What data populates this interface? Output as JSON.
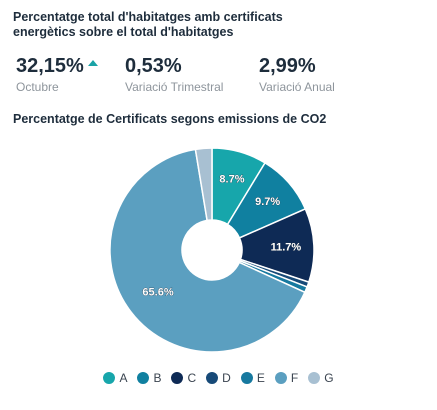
{
  "header": {
    "title_line1": "Percentatge total d'habitatges amb certificats",
    "title_line2": "energètics sobre el total d'habitatges"
  },
  "kpis": [
    {
      "value": "32,15%",
      "label": "Octubre",
      "trend": "up"
    },
    {
      "value": "0,53%",
      "label": "Variació Trimestral"
    },
    {
      "value": "2,99%",
      "label": "Variació Anual"
    }
  ],
  "chart_data": {
    "type": "pie",
    "variant": "donut",
    "title": "Percentatge de Certificats segons emissions de CO2",
    "categories": [
      "A",
      "B",
      "C",
      "D",
      "E",
      "F",
      "G"
    ],
    "values": [
      8.7,
      9.7,
      11.7,
      0.8,
      0.9,
      65.6,
      2.6
    ],
    "data_labels": [
      "8.7%",
      "9.7%",
      "11.7%",
      "",
      "",
      "65.6%",
      ""
    ],
    "colors": [
      "#17a6ab",
      "#1080a0",
      "#0e2a55",
      "#174a78",
      "#17799f",
      "#5b9fc0",
      "#a8c0d2"
    ],
    "legend": "bottom"
  }
}
